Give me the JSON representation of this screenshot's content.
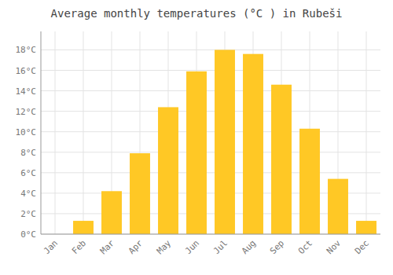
{
  "chart_data": {
    "type": "bar",
    "title": "Average monthly temperatures (°C ) in Rubeši",
    "categories": [
      "Jan",
      "Feb",
      "Mar",
      "Apr",
      "May",
      "Jun",
      "Jul",
      "Aug",
      "Sep",
      "Oct",
      "Nov",
      "Dec"
    ],
    "values": [
      0.0,
      1.3,
      4.2,
      7.9,
      12.4,
      15.9,
      18.0,
      17.6,
      14.6,
      10.3,
      5.4,
      1.3
    ],
    "color": "#FFC825",
    "ylim": [
      0,
      19.8
    ],
    "yticks": [
      {
        "value": 0,
        "label": "0°C"
      },
      {
        "value": 2,
        "label": "2°C"
      },
      {
        "value": 4,
        "label": "4°C"
      },
      {
        "value": 6,
        "label": "6°C"
      },
      {
        "value": 8,
        "label": "8°C"
      },
      {
        "value": 10,
        "label": "10°C"
      },
      {
        "value": 12,
        "label": "12°C"
      },
      {
        "value": 14,
        "label": "14°C"
      },
      {
        "value": 16,
        "label": "16°C"
      },
      {
        "value": 18,
        "label": "18°C"
      }
    ],
    "grid": true
  }
}
